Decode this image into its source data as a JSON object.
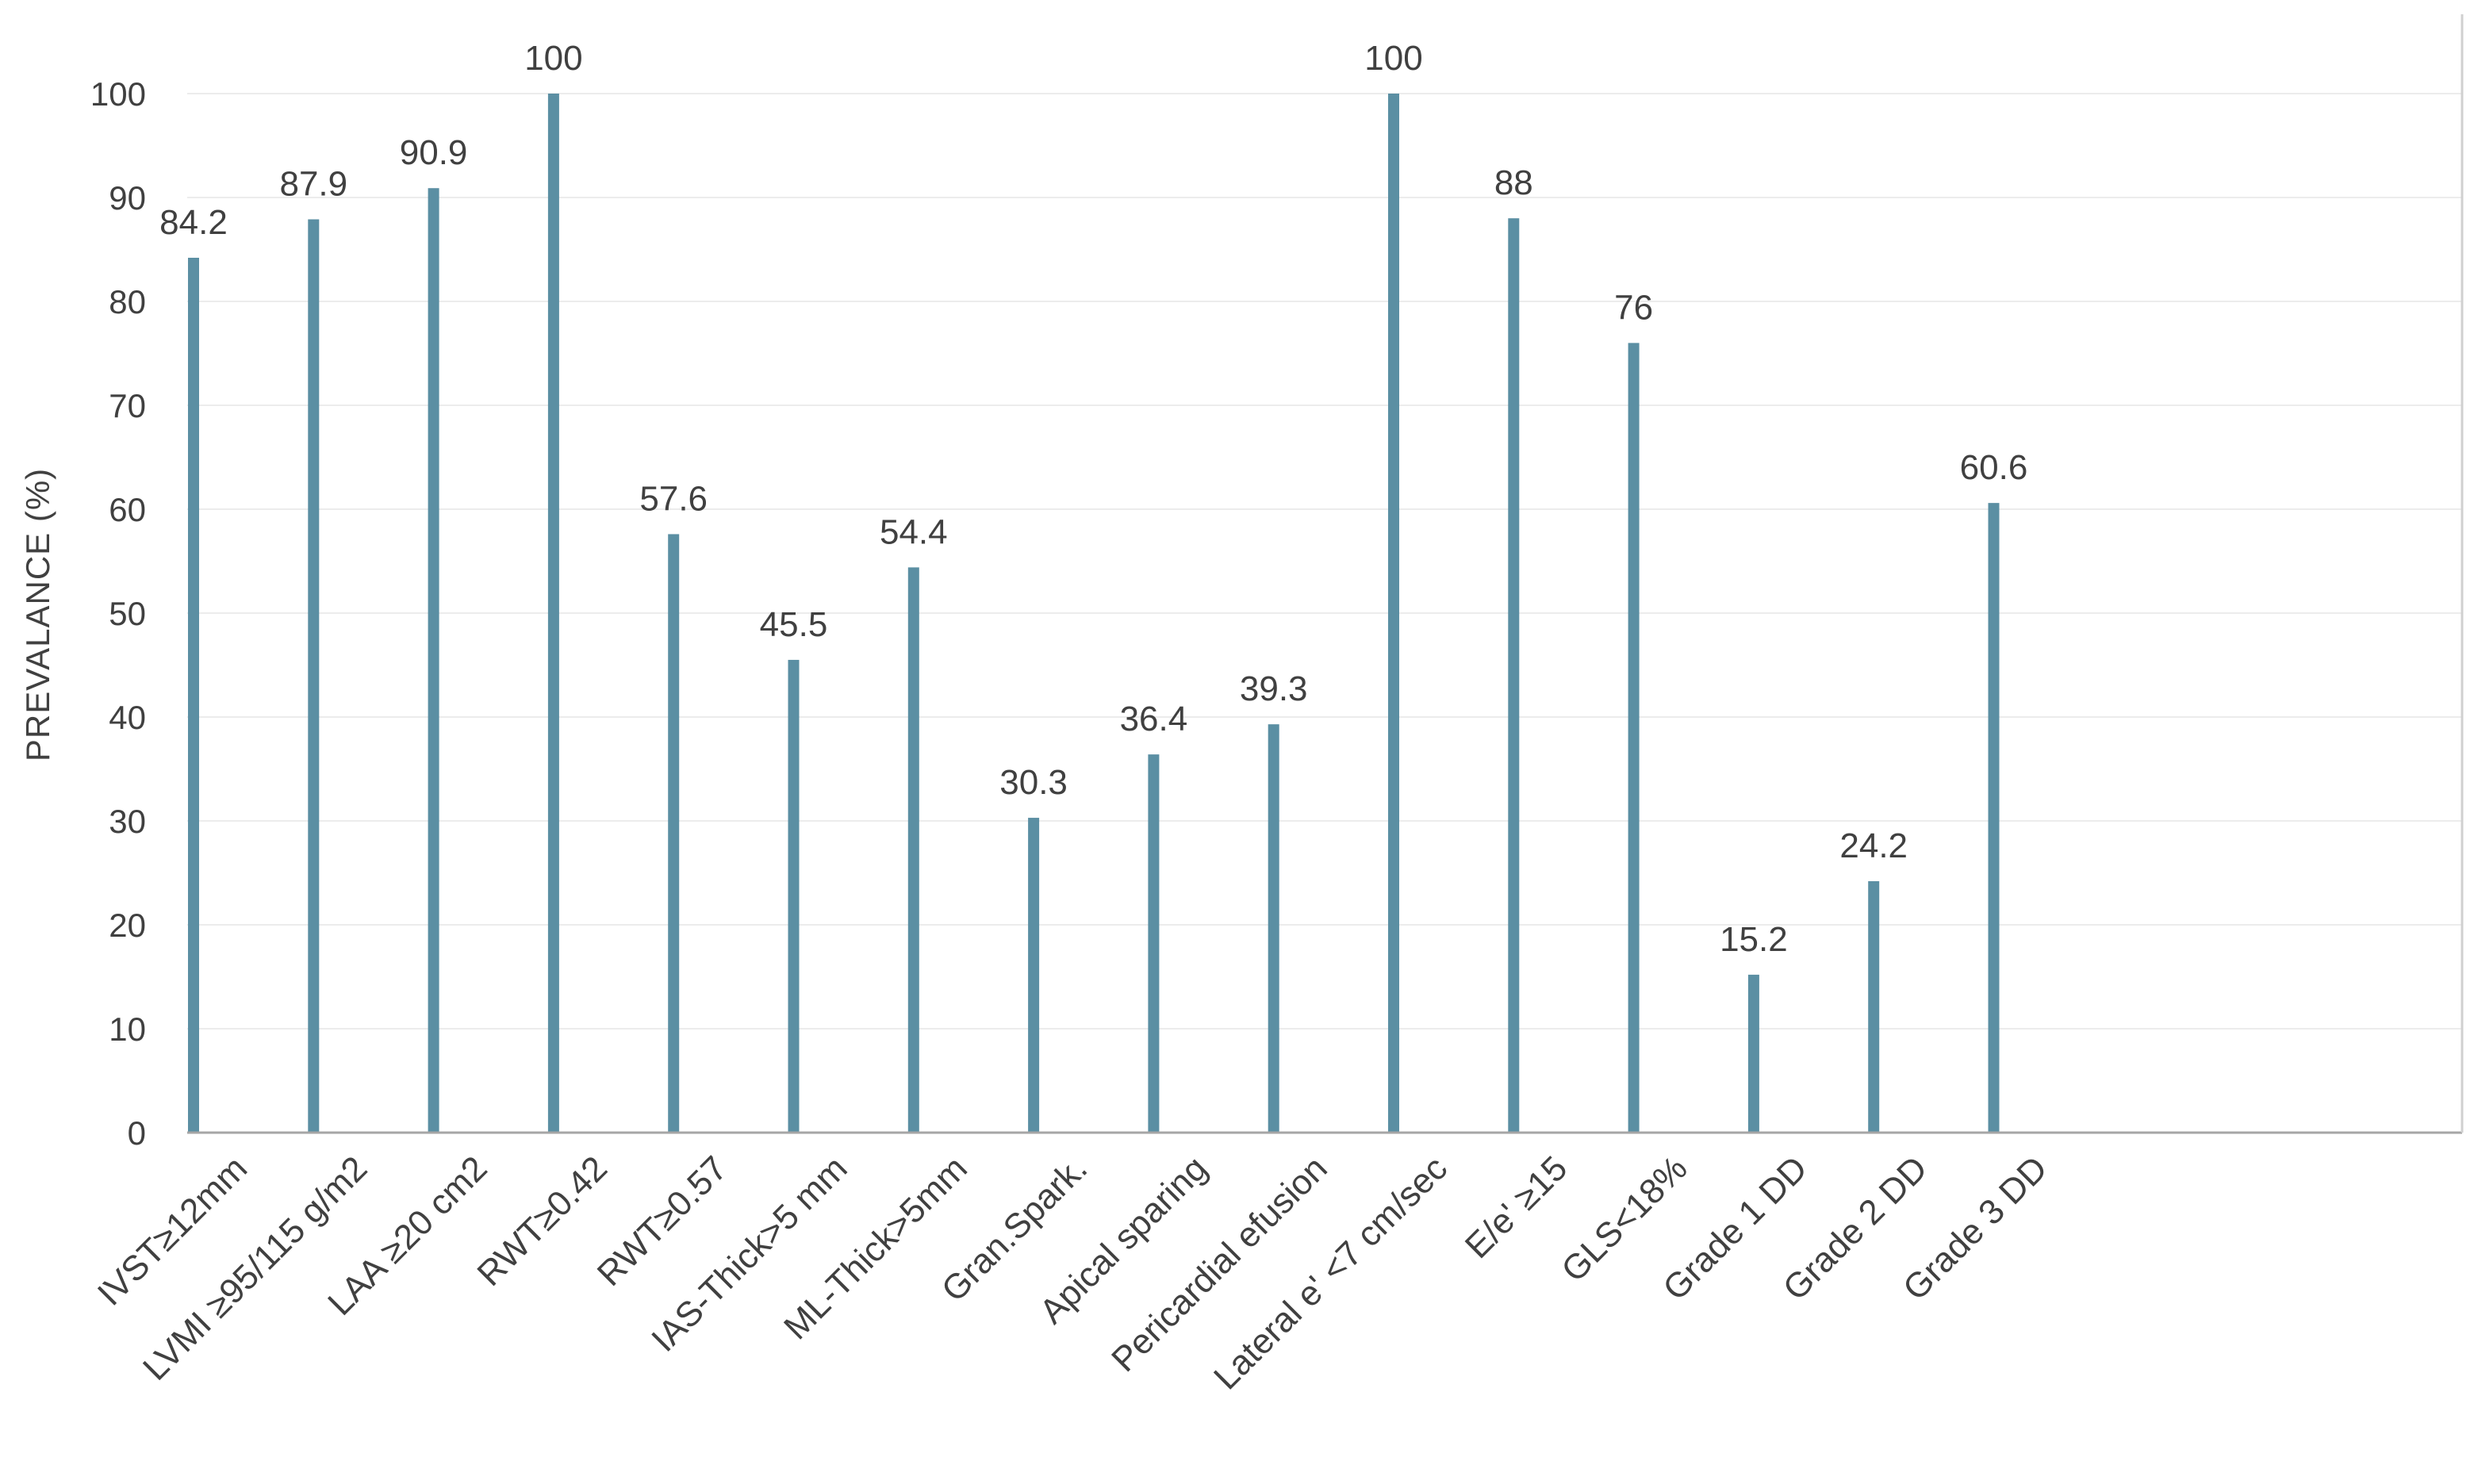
{
  "chart_data": {
    "type": "bar",
    "title": "",
    "xlabel": "",
    "ylabel": "PREVALANCE (%)",
    "ylim": [
      0,
      100
    ],
    "yticks": [
      0,
      10,
      20,
      30,
      40,
      50,
      60,
      70,
      80,
      90,
      100
    ],
    "grid": true,
    "legend": "none",
    "bar_color": "#5b8fa3",
    "categories": [
      "IVST≥12mm",
      "LVMI ≥95/115 g/m2",
      "LAA ≥20 cm2",
      "RWT≥0.42",
      "RWT≥0.57",
      "IAS-Thick>5 mm",
      "ML-Thick>5mm",
      "Gran.Spark.",
      "Apical sparing",
      "Pericardial efusion",
      "Lateral e' <7 cm/sec",
      "E/e' ≥15",
      "GLS<18%",
      "Grade 1 DD",
      "Grade 2 DD",
      "Grade 3 DD"
    ],
    "values": [
      84.2,
      87.9,
      90.9,
      100,
      57.6,
      45.5,
      54.4,
      30.3,
      36.4,
      39.3,
      100,
      88,
      76,
      15.2,
      24.2,
      60.6
    ],
    "data_labels": [
      "84.2",
      "87.9",
      "90.9",
      "100",
      "57.6",
      "45.5",
      "54.4",
      "30.3",
      "36.4",
      "39.3",
      "100",
      "88",
      "76",
      "15.2",
      "24.2",
      "60.6"
    ]
  }
}
